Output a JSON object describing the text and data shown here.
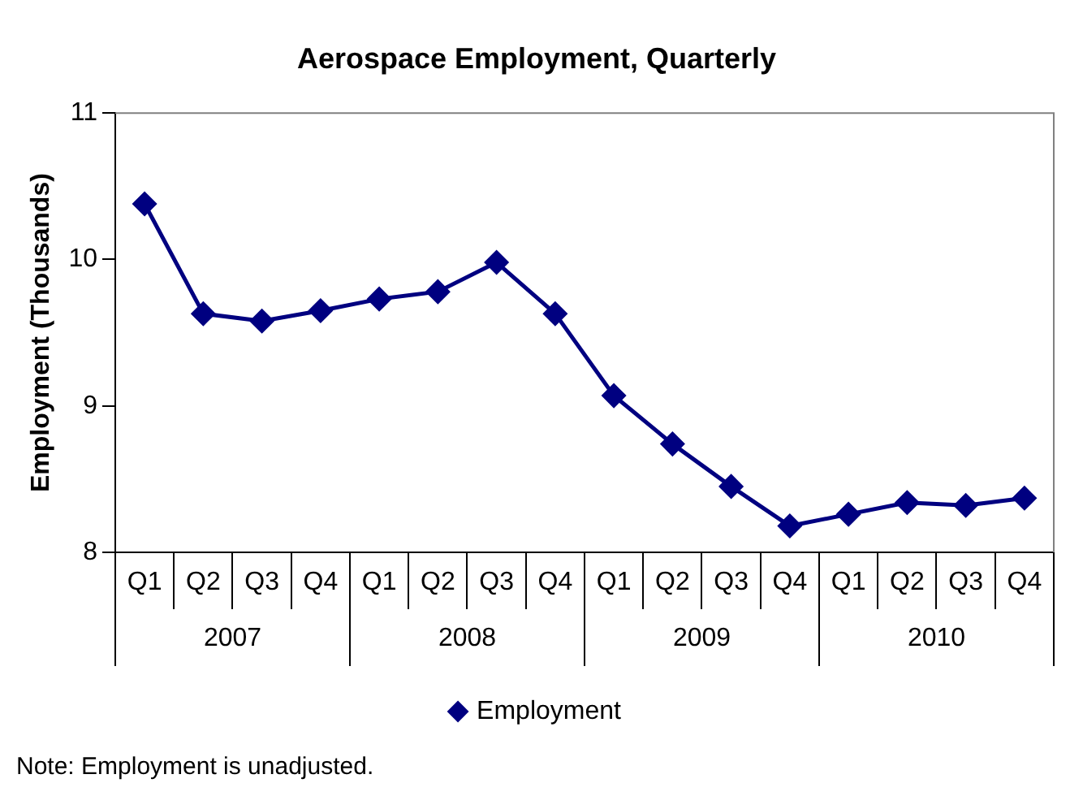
{
  "chart_data": {
    "type": "line",
    "title": "Aerospace Employment, Quarterly",
    "ylabel": "Employment (Thousands)",
    "categories": [
      "Q1",
      "Q2",
      "Q3",
      "Q4",
      "Q1",
      "Q2",
      "Q3",
      "Q4",
      "Q1",
      "Q2",
      "Q3",
      "Q4",
      "Q1",
      "Q2",
      "Q3",
      "Q4"
    ],
    "series": [
      {
        "name": "Employment",
        "color": "#000080",
        "values": [
          10.38,
          9.63,
          9.58,
          9.65,
          9.73,
          9.78,
          9.98,
          9.63,
          9.07,
          8.74,
          8.45,
          8.18,
          8.26,
          8.34,
          8.32,
          8.37
        ]
      }
    ],
    "ylim": [
      8,
      11
    ],
    "yticks": [
      8,
      9,
      10,
      11
    ],
    "marker": "diamond",
    "line_style": "solid",
    "legend": "bottom",
    "annotations": [
      "2007",
      "2008",
      "2009",
      "2010",
      "Note: Employment is unadjusted."
    ]
  }
}
